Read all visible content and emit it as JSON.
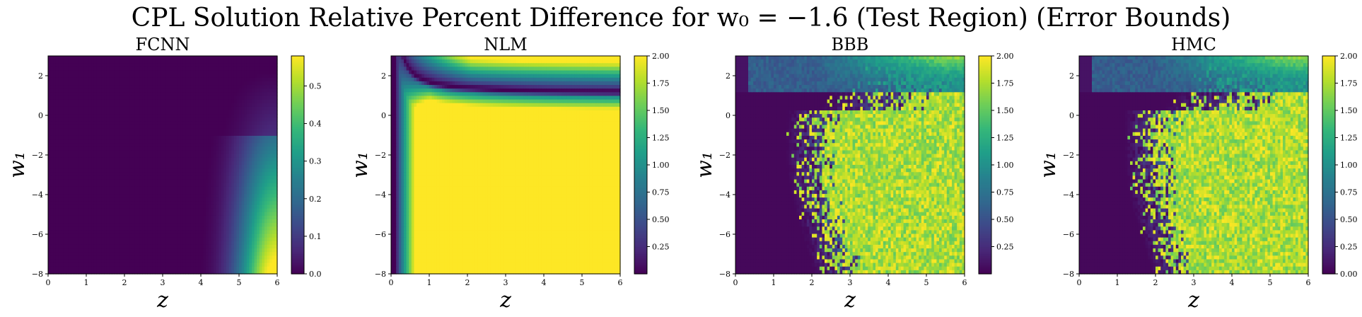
{
  "figure": {
    "suptitle": "CPL Solution Relative Percent Difference for w₀ = −1.6 (Test Region) (Error Bounds)"
  },
  "colormap": "viridis",
  "colormap_stops": [
    "#440154",
    "#482878",
    "#3e4989",
    "#31688e",
    "#26828e",
    "#1f9e89",
    "#35b779",
    "#6ece58",
    "#b5de2b",
    "#fde725"
  ],
  "chart_data": [
    {
      "type": "heatmap",
      "title": "FCNN",
      "xlabel": "z",
      "ylabel": "w₁",
      "xlim": [
        0,
        6
      ],
      "ylim": [
        -8,
        3
      ],
      "x_ticks": [
        "0",
        "1",
        "2",
        "3",
        "4",
        "5",
        "6"
      ],
      "y_ticks": [
        "−8",
        "−6",
        "−4",
        "−2",
        "0",
        "2"
      ],
      "color_range": [
        0,
        0.58
      ],
      "colorbar_ticks": [
        "0.0",
        "0.1",
        "0.2",
        "0.3",
        "0.4",
        "0.5"
      ],
      "colorbar_tick_values": [
        0.0,
        0.1,
        0.2,
        0.3,
        0.4,
        0.5
      ],
      "pattern": "fcnn"
    },
    {
      "type": "heatmap",
      "title": "NLM",
      "xlabel": "z",
      "ylabel": "w₁",
      "xlim": [
        0,
        6
      ],
      "ylim": [
        -8,
        3
      ],
      "x_ticks": [
        "0",
        "1",
        "2",
        "3",
        "4",
        "5",
        "6"
      ],
      "y_ticks": [
        "−8",
        "−6",
        "−4",
        "−2",
        "0",
        "2"
      ],
      "color_range": [
        0.0,
        2.0
      ],
      "colorbar_ticks": [
        "0.25",
        "0.50",
        "0.75",
        "1.00",
        "1.25",
        "1.50",
        "1.75",
        "2.00"
      ],
      "colorbar_tick_values": [
        0.25,
        0.5,
        0.75,
        1.0,
        1.25,
        1.5,
        1.75,
        2.0
      ],
      "pattern": "nlm"
    },
    {
      "type": "heatmap",
      "title": "BBB",
      "xlabel": "z",
      "ylabel": "w₁",
      "xlim": [
        0,
        6
      ],
      "ylim": [
        -8,
        3
      ],
      "x_ticks": [
        "0",
        "1",
        "2",
        "3",
        "4",
        "5",
        "6"
      ],
      "y_ticks": [
        "−8",
        "−6",
        "−4",
        "−2",
        "0",
        "2"
      ],
      "color_range": [
        0.0,
        2.0
      ],
      "colorbar_ticks": [
        "0.25",
        "0.50",
        "0.75",
        "1.00",
        "1.25",
        "1.50",
        "1.75",
        "2.00"
      ],
      "colorbar_tick_values": [
        0.25,
        0.5,
        0.75,
        1.0,
        1.25,
        1.5,
        1.75,
        2.0
      ],
      "pattern": "bbb"
    },
    {
      "type": "heatmap",
      "title": "HMC",
      "xlabel": "z",
      "ylabel": "w₁",
      "xlim": [
        0,
        6
      ],
      "ylim": [
        -8,
        3
      ],
      "x_ticks": [
        "0",
        "1",
        "2",
        "3",
        "4",
        "5",
        "6"
      ],
      "y_ticks": [
        "−8",
        "−6",
        "−4",
        "−2",
        "0",
        "2"
      ],
      "color_range": [
        0.0,
        2.0
      ],
      "colorbar_ticks": [
        "0.00",
        "0.25",
        "0.50",
        "0.75",
        "1.00",
        "1.25",
        "1.50",
        "1.75",
        "2.00"
      ],
      "colorbar_tick_values": [
        0.0,
        0.25,
        0.5,
        0.75,
        1.0,
        1.25,
        1.5,
        1.75,
        2.0
      ],
      "pattern": "hmc"
    }
  ]
}
